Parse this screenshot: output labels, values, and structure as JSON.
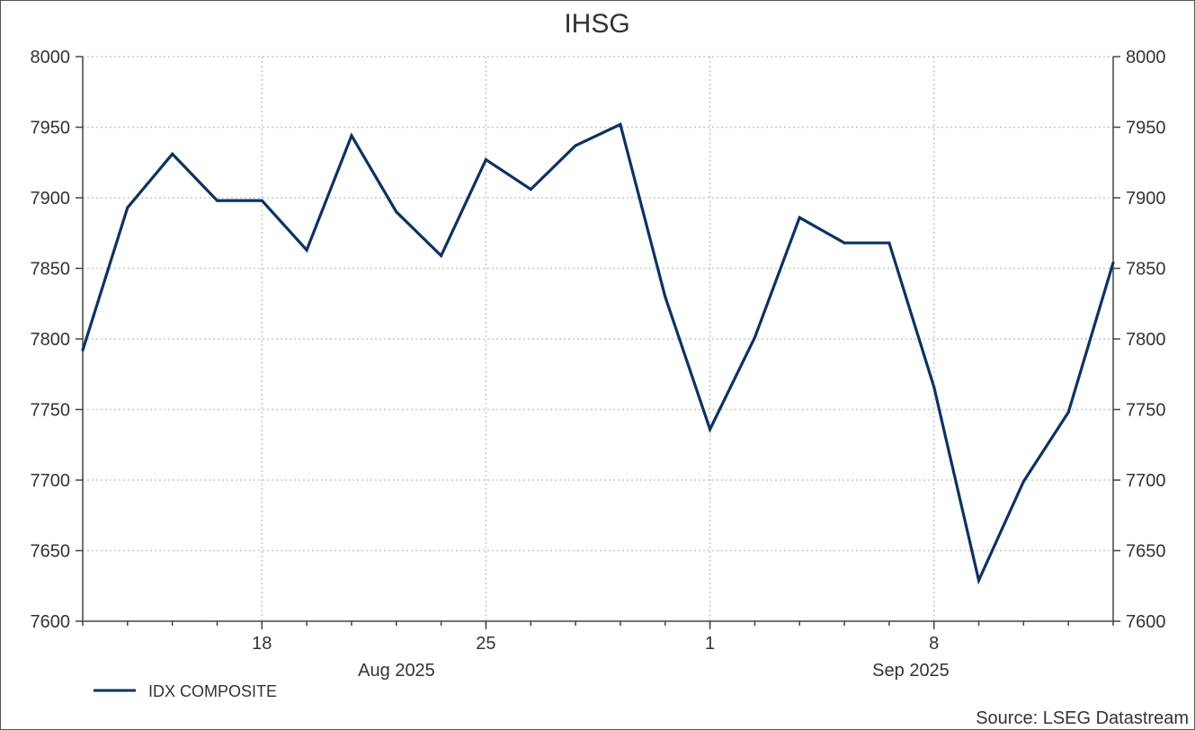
{
  "chart_data": {
    "type": "line",
    "title": "IHSG",
    "x": [
      "2025-08-12",
      "2025-08-13",
      "2025-08-14",
      "2025-08-15",
      "2025-08-18",
      "2025-08-19",
      "2025-08-20",
      "2025-08-21",
      "2025-08-22",
      "2025-08-25",
      "2025-08-26",
      "2025-08-27",
      "2025-08-28",
      "2025-08-29",
      "2025-09-01",
      "2025-09-02",
      "2025-09-03",
      "2025-09-04",
      "2025-09-05",
      "2025-09-08",
      "2025-09-09",
      "2025-09-10",
      "2025-09-11",
      "2025-09-12"
    ],
    "series": [
      {
        "name": "IDX COMPOSITE",
        "color": "#0d3263",
        "values": [
          7792,
          7893,
          7931,
          7898,
          7898,
          7863,
          7944,
          7890,
          7859,
          7927,
          7906,
          7937,
          7952,
          7830,
          7736,
          7801,
          7886,
          7868,
          7868,
          7766,
          7629,
          7699,
          7748,
          7854
        ]
      }
    ],
    "x_tick_labels": [
      {
        "index": 4,
        "label": "18"
      },
      {
        "index": 9,
        "label": "25"
      },
      {
        "index": 14,
        "label": "1"
      },
      {
        "index": 19,
        "label": "8"
      }
    ],
    "x_group_labels": [
      {
        "label": "Aug 2025"
      },
      {
        "label": "Sep 2025"
      }
    ],
    "ylim": [
      7600,
      8000
    ],
    "y_ticks": [
      7600,
      7650,
      7700,
      7750,
      7800,
      7850,
      7900,
      7950,
      8000
    ],
    "y_axis_sides": "left and right",
    "grid": true,
    "legend_position": "bottom-left",
    "source": "Source: LSEG Datastream"
  }
}
